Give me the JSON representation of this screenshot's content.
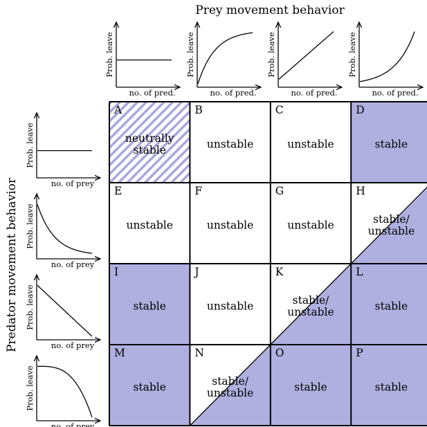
{
  "title_top": "Prey movement behavior",
  "title_left": "Predator movement behavior",
  "colors": {
    "fill": "#b0b0e0",
    "hatch": "#a8a8dc",
    "line": "#000000"
  },
  "top_plots": [
    {
      "ylabel": "Prob. leave",
      "xlabel": "no. of pred.",
      "shape": "flat"
    },
    {
      "ylabel": "Prob. leave",
      "xlabel": "no. of pred.",
      "shape": "concave-increasing"
    },
    {
      "ylabel": "Prob. leave",
      "xlabel": "no. of pred.",
      "shape": "linear-increasing"
    },
    {
      "ylabel": "Prob. leave",
      "xlabel": "no. of pred.",
      "shape": "convex-increasing"
    }
  ],
  "left_plots": [
    {
      "ylabel": "Prob. leave",
      "xlabel": "no. of prey",
      "shape": "flat"
    },
    {
      "ylabel": "Prob. leave",
      "xlabel": "no. of prey",
      "shape": "convex-decreasing"
    },
    {
      "ylabel": "Prob. leave",
      "xlabel": "no. of prey",
      "shape": "linear-decreasing"
    },
    {
      "ylabel": "Prob. leave",
      "xlabel": "no. of prey",
      "shape": "concave-decreasing"
    }
  ],
  "cells": [
    {
      "letter": "A",
      "lines": [
        "neutrally",
        "stable"
      ],
      "fill": "hatch"
    },
    {
      "letter": "B",
      "lines": [
        "unstable"
      ],
      "fill": "none"
    },
    {
      "letter": "C",
      "lines": [
        "unstable"
      ],
      "fill": "none"
    },
    {
      "letter": "D",
      "lines": [
        "stable"
      ],
      "fill": "full"
    },
    {
      "letter": "E",
      "lines": [
        "unstable"
      ],
      "fill": "none"
    },
    {
      "letter": "F",
      "lines": [
        "unstable"
      ],
      "fill": "none"
    },
    {
      "letter": "G",
      "lines": [
        "unstable"
      ],
      "fill": "none"
    },
    {
      "letter": "H",
      "lines": [
        "stable/",
        "unstable"
      ],
      "fill": "diag"
    },
    {
      "letter": "I",
      "lines": [
        "stable"
      ],
      "fill": "full"
    },
    {
      "letter": "J",
      "lines": [
        "unstable"
      ],
      "fill": "none"
    },
    {
      "letter": "K",
      "lines": [
        "stable/",
        "unstable"
      ],
      "fill": "diag"
    },
    {
      "letter": "L",
      "lines": [
        "stable"
      ],
      "fill": "full"
    },
    {
      "letter": "M",
      "lines": [
        "stable"
      ],
      "fill": "full"
    },
    {
      "letter": "N",
      "lines": [
        "stable/",
        "unstable"
      ],
      "fill": "diag"
    },
    {
      "letter": "O",
      "lines": [
        "stable"
      ],
      "fill": "full"
    },
    {
      "letter": "P",
      "lines": [
        "stable"
      ],
      "fill": "full"
    }
  ]
}
